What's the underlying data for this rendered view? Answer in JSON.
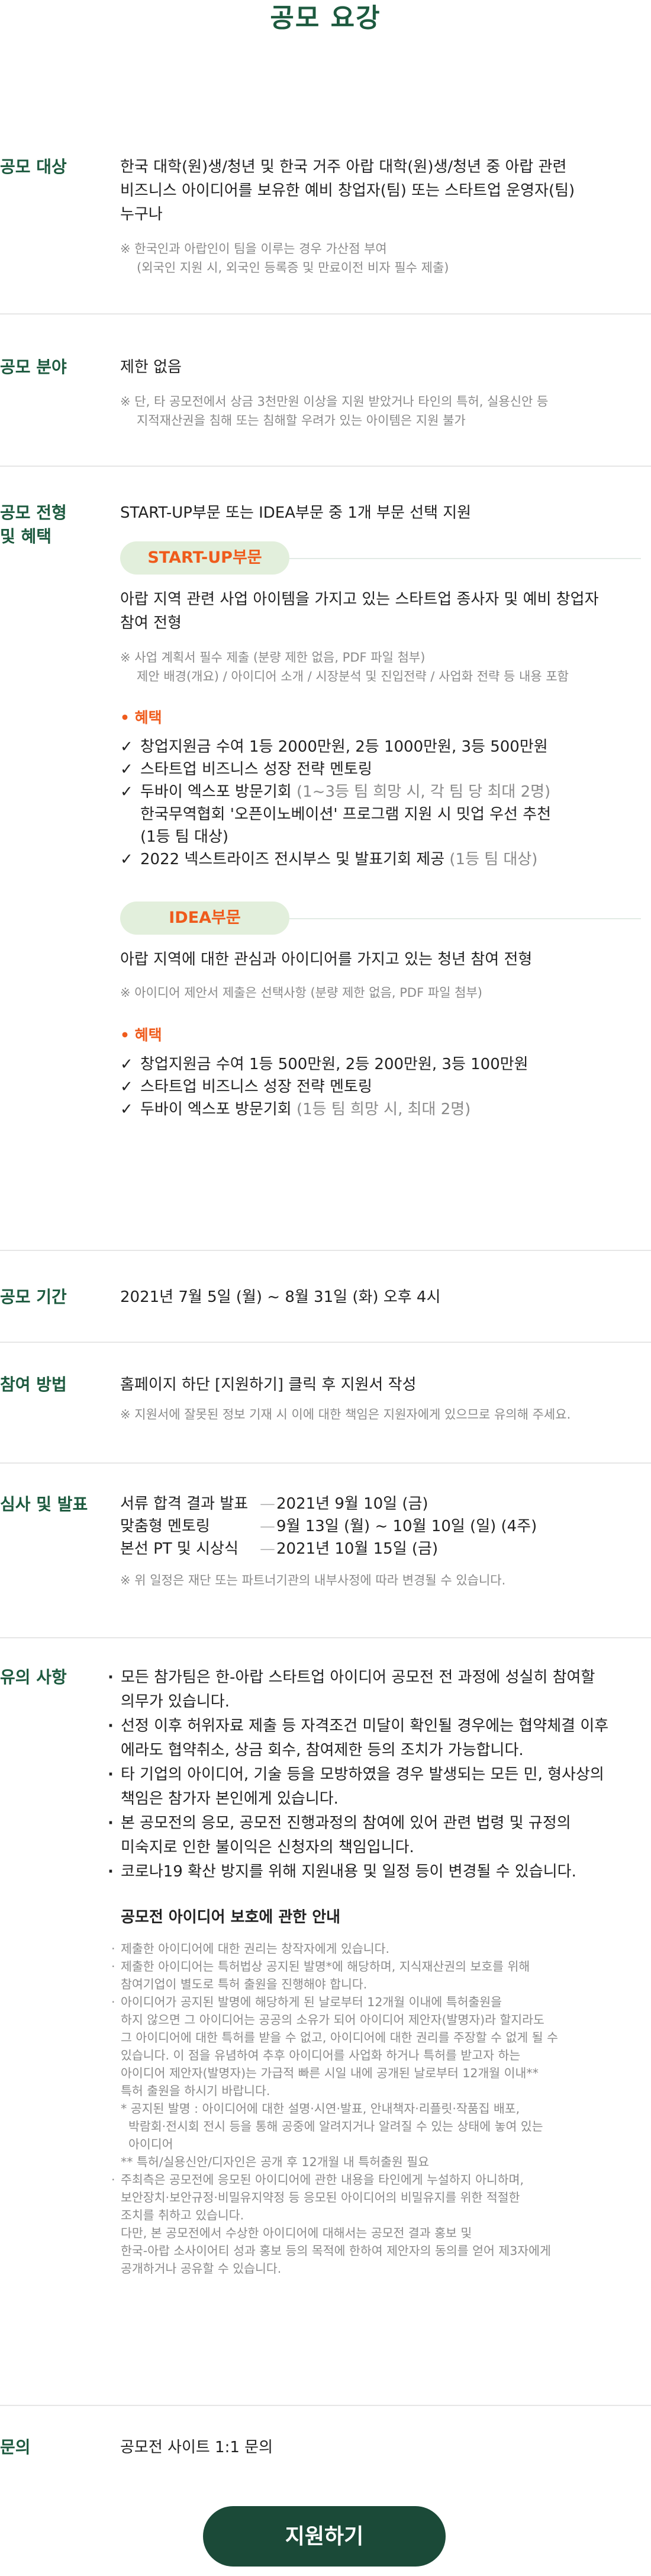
{
  "page_title": "공모 요강",
  "target": {
    "label": "공모 대상",
    "main": [
      "한국 대학(원)생/청년 및 한국 거주 아랍 대학(원)생/청년 중 아랍 관련",
      "비즈니스 아이디어를 보유한 예비 창업자(팀) 또는 스타트업 운영자(팀)",
      "누구나"
    ],
    "notes": [
      "※ 한국인과 아랍인이 팀을 이루는 경우 가산점 부여",
      "(외국인 지원 시, 외국인 등록증 및 만료이전 비자 필수 제출)"
    ]
  },
  "field": {
    "label": "공모 분야",
    "main": "제한 없음",
    "notes": [
      "※ 단, 타 공모전에서 상금 3천만원 이상을 지원 받았거나 타인의 특허, 실용신안 등",
      "지적재산권을 침해 또는 침해할 우려가 있는 아이템은 지원 불가"
    ]
  },
  "process": {
    "label_line1": "공모 전형",
    "label_line2": "및 혜택",
    "intro": "START-UP부문 또는 IDEA부문 중 1개 부문 선택 지원",
    "startup": {
      "pill": "START-UP부문",
      "desc": [
        "아랍 지역 관련 사업 아이템을 가지고 있는 스타트업 종사자 및 예비 창업자",
        "참여 전형"
      ],
      "notes": [
        "※ 사업 계획서 필수 제출 (분량 제한 없음, PDF 파일 첨부)",
        "제안 배경(개요) / 아이디어 소개 / 시장분석 및 진입전략 / 사업화 전략 등 내용 포함"
      ],
      "benefit_title": "• 혜택",
      "benefits": [
        {
          "text": "창업지원금 수여 1등 2000만원, 2등 1000만원, 3등 500만원"
        },
        {
          "text": "스타트업 비즈니스 성장 전략 멘토링"
        },
        {
          "text": "두바이 엑스포 방문기회",
          "gray": "(1~3등 팀 희망 시, 각 팀 당 최대 2명)",
          "sub": "한국무역협회 '오픈이노베이션' 프로그램 지원 시 밋업 우선 추천",
          "sub_gray": "(1등 팀 대상)"
        },
        {
          "text": "2022 넥스트라이즈 전시부스 및 발표기회 제공",
          "gray": "(1등 팀 대상)"
        }
      ]
    },
    "idea": {
      "pill": "IDEA부문",
      "desc": "아랍 지역에 대한 관심과 아이디어를 가지고 있는 청년 참여 전형",
      "note": "※ 아이디어 제안서 제출은 선택사항 (분량 제한 없음, PDF 파일 첨부)",
      "benefit_title": "• 혜택",
      "benefits": [
        {
          "text": "창업지원금 수여 1등 500만원, 2등 200만원, 3등 100만원"
        },
        {
          "text": "스타트업 비즈니스 성장 전략 멘토링"
        },
        {
          "text": "두바이 엑스포 방문기회",
          "gray": "(1등 팀 희망 시, 최대 2명)"
        }
      ]
    }
  },
  "period": {
    "label": "공모 기간",
    "main": "2021년 7월 5일 (월) ~ 8월 31일 (화) 오후 4시"
  },
  "method": {
    "label": "참여 방법",
    "main": "홈페이지 하단 [지원하기] 클릭 후 지원서 작성",
    "note": "※ 지원서에 잘못된 정보 기재 시 이에 대한 책임은 지원자에게 있으므로 유의해 주세요."
  },
  "review": {
    "label": "심사 및 발표",
    "schedule": [
      {
        "name": "서류 합격 결과 발표",
        "dash": "—",
        "date": "2021년 9월 10일 (금)"
      },
      {
        "name": "맞춤형 멘토링",
        "dash": "—",
        "date": "9월 13일 (월) ~ 10월 10일 (일) (4주)"
      },
      {
        "name": "본선 PT 및 시상식",
        "dash": "—",
        "date": "2021년 10월 15일 (금)"
      }
    ],
    "note": "※ 위 일정은 재단 또는 파트너기관의 내부사정에 따라 변경될 수 있습니다."
  },
  "notice": {
    "label": "유의 사항",
    "items": [
      [
        "모든 참가팀은 한-아랍 스타트업 아이디어 공모전 전 과정에 성실히 참여할",
        "의무가 있습니다."
      ],
      [
        "선정 이후 허위자료 제출 등 자격조건 미달이 확인될 경우에는 협약체결 이후",
        "에라도 협약취소, 상금 회수, 참여제한 등의 조치가 가능합니다."
      ],
      [
        "타 기업의 아이디어, 기술 등을 모방하였을 경우 발생되는 모든 민, 형사상의",
        "책임은 참가자 본인에게 있습니다."
      ],
      [
        "본 공모전의 응모, 공모전 진행과정의 참여에 있어 관련 법령 및 규정의",
        "미숙지로 인한 불이익은 신청자의 책임입니다."
      ],
      [
        "코로나19 확산 방지를 위해 지원내용 및 일정 등이 변경될 수 있습니다."
      ]
    ],
    "protection_title": "공모전 아이디어 보호에 관한 안내",
    "protection": [
      {
        "dot": true,
        "lines": [
          "제출한 아이디어에 대한 권리는 창작자에게 있습니다."
        ]
      },
      {
        "dot": true,
        "lines": [
          "제출한 아이디어는 특허법상 공지된 발명*에 해당하며, 지식재산권의 보호를 위해",
          "참여기업이 별도로 특허 출원을 진행해야 합니다."
        ]
      },
      {
        "dot": true,
        "lines": [
          "아이디어가 공지된 발명에 해당하게 된 날로부터 12개월 이내에 특허출원을",
          "하지 않으면 그 아이디어는 공공의 소유가 되어 아이디어 제안자(발명자)라 할지라도",
          "그 아이디어에 대한 특허를 받을 수 없고, 아이디어에 대한 권리를 주장할 수 없게 될 수",
          "있습니다. 이 점을 유념하여 추후 아이디어를 사업화 하거나 특허를 받고자 하는",
          "아이디어 제안자(발명자)는 가급적 빠른 시일 내에 공개된 날로부터 12개월 이내**",
          "특허 출원을 하시기 바랍니다."
        ]
      },
      {
        "dot": false,
        "lines": [
          "* 공지된 발명 : 아이디어에 대한 설명·시연·발표, 안내책자·리플릿·작품집 배포,",
          "  박람회·전시회 전시 등을 통해 공중에 알려지거나 알려질 수 있는 상태에 놓여 있는",
          "  아이디어"
        ]
      },
      {
        "dot": false,
        "lines": [
          "** 특허/실용신안/디자인은 공개 후 12개월 내 특허출원 필요"
        ]
      },
      {
        "dot": true,
        "lines": [
          "주최측은 공모전에 응모된 아이디어에 관한 내용을 타인에게 누설하지 아니하며,",
          "보안장치·보안규정·비밀유지약정 등 응모된 아이디어의 비밀유지를 위한 적절한",
          "조치를 취하고 있습니다.",
          "다만, 본 공모전에서 수상한 아이디어에 대해서는 공모전 결과 홍보 및",
          "한국-아랍 소사이어티 성과 홍보 등의 목적에 한하여 제안자의 동의를 얻어 제3자에게",
          "공개하거나 공유할 수 있습니다."
        ]
      }
    ]
  },
  "inquiry": {
    "label": "문의",
    "main": "공모전 사이트 1:1 문의"
  },
  "apply_button": "지원하기",
  "colors": {
    "accent": "#1d5a3f",
    "orange": "#ef5b1c",
    "pill_bg": "#e2efdc",
    "button": "#1b4a38"
  }
}
